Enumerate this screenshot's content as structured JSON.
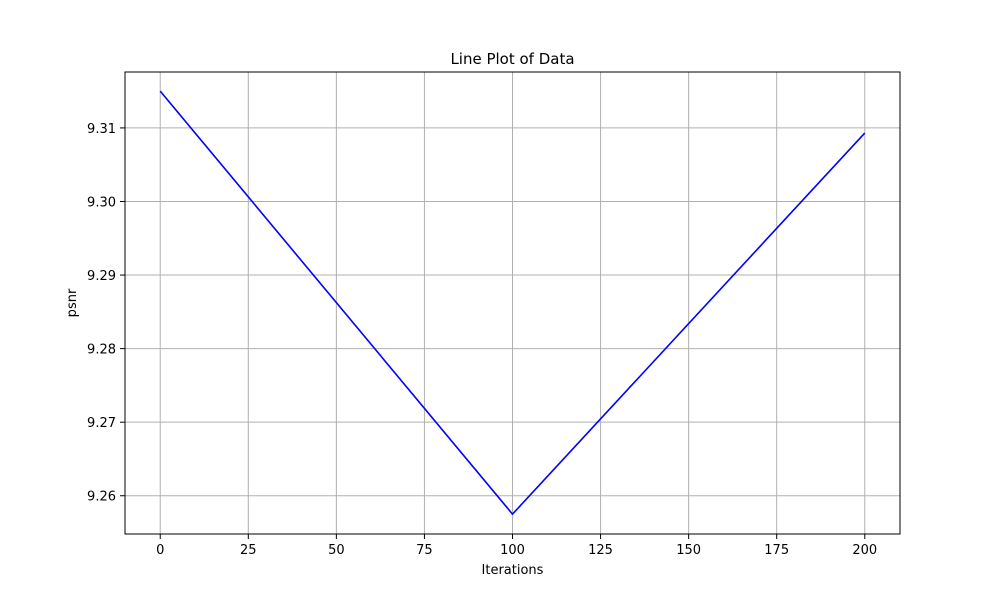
{
  "chart_data": {
    "type": "line",
    "title": "Line Plot of Data",
    "xlabel": "Iterations",
    "ylabel": "psnr",
    "xlim": [
      -10,
      210
    ],
    "ylim": [
      9.2548,
      9.3176
    ],
    "xticks": [
      0,
      25,
      50,
      75,
      100,
      125,
      150,
      175,
      200
    ],
    "yticks": [
      9.26,
      9.27,
      9.28,
      9.29,
      9.3,
      9.31
    ],
    "ytick_labels": [
      "9.26",
      "9.27",
      "9.28",
      "9.29",
      "9.30",
      "9.31"
    ],
    "grid": true,
    "series": [
      {
        "x": [
          0,
          100,
          200
        ],
        "values": [
          9.315,
          9.2575,
          9.3093
        ],
        "color": "#0000ff"
      }
    ]
  }
}
